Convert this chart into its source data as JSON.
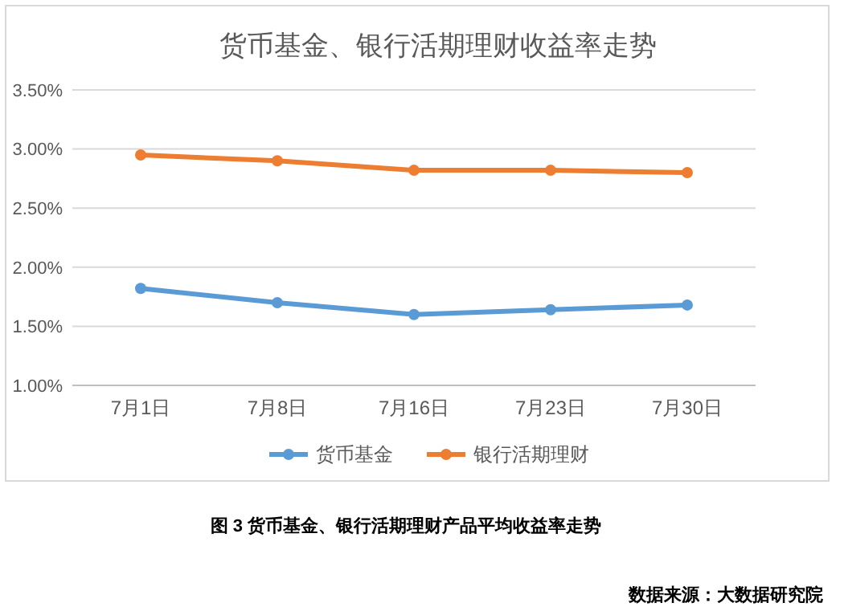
{
  "chart_data": {
    "type": "line",
    "title": "货币基金、银行活期理财收益率走势",
    "categories": [
      "7月1日",
      "7月8日",
      "7月16日",
      "7月23日",
      "7月30日"
    ],
    "series": [
      {
        "name": "货币基金",
        "color": "#5b9bd5",
        "values": [
          1.82,
          1.7,
          1.6,
          1.64,
          1.68
        ]
      },
      {
        "name": "银行活期理财",
        "color": "#ed7d31",
        "values": [
          2.95,
          2.9,
          2.82,
          2.82,
          2.8
        ]
      }
    ],
    "ylim": [
      1.0,
      3.5
    ],
    "yticks": [
      {
        "value": 1.0,
        "label": "1.00%"
      },
      {
        "value": 1.5,
        "label": "1.50%"
      },
      {
        "value": 2.0,
        "label": "2.00%"
      },
      {
        "value": 2.5,
        "label": "2.50%"
      },
      {
        "value": 3.0,
        "label": "3.00%"
      },
      {
        "value": 3.5,
        "label": "3.50%"
      }
    ],
    "grid": "y",
    "legend": "bottom",
    "marker": "circle",
    "line_style": "solid",
    "annotations": [
      "图 3 货币基金、银行活期理财产品平均收益率走势",
      "数据来源：大数据研究院"
    ]
  }
}
